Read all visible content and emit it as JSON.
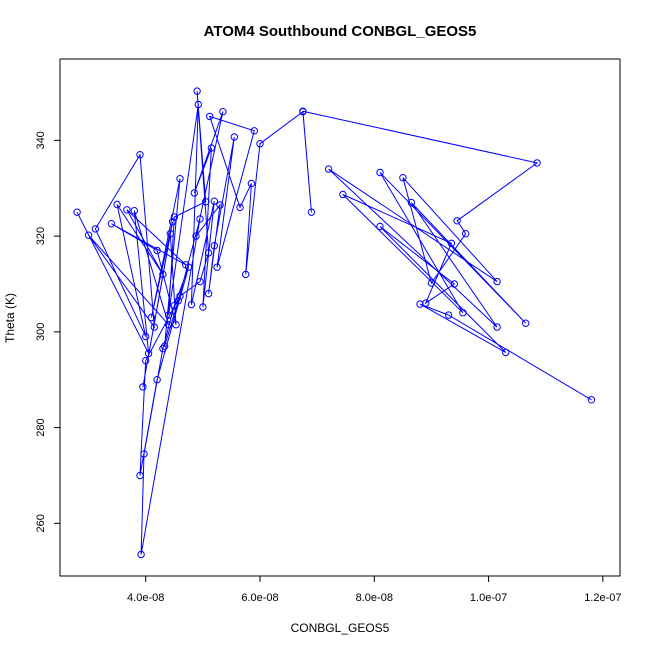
{
  "chart_data": {
    "type": "line",
    "title": "ATOM4 Southbound CONBGL_GEOS5",
    "xlabel": "CONBGL_GEOS5",
    "ylabel": "Theta (K)",
    "xlim": [
      2.5e-08,
      1.23e-07
    ],
    "ylim": [
      249.0,
      357.0
    ],
    "xticks": [
      {
        "value": 4e-08,
        "label": "4.0e-08"
      },
      {
        "value": 6e-08,
        "label": "6.0e-08"
      },
      {
        "value": 8e-08,
        "label": "8.0e-08"
      },
      {
        "value": 1e-07,
        "label": "1.0e-07"
      },
      {
        "value": 1.2e-07,
        "label": "1.2e-07"
      }
    ],
    "yticks": [
      {
        "value": 260,
        "label": "260"
      },
      {
        "value": 280,
        "label": "280"
      },
      {
        "value": 300,
        "label": "300"
      },
      {
        "value": 320,
        "label": "320"
      },
      {
        "value": 340,
        "label": "340"
      }
    ],
    "series_color": "#0000ff",
    "marker": "open-circle",
    "series": [
      {
        "x": [
          2.8e-08,
          4.05e-08,
          3.8e-08,
          4.4e-08,
          3e-08,
          4.15e-08,
          3.9e-08,
          3.12e-08,
          4e-08,
          3.5e-08,
          4.3e-08,
          3.67e-08,
          4.7e-08,
          3.4e-08,
          4.2e-08,
          4.53e-08,
          4.43e-08,
          3.95e-08,
          4.47e-08,
          4.1e-08,
          4.6e-08,
          4.33e-08,
          4.57e-08,
          4.95e-08,
          3.92e-08,
          3.97e-08,
          4.3e-08,
          4.5e-08,
          4.75e-08,
          4.2e-08,
          3.9e-08,
          4e-08,
          4.6e-08,
          4.95e-08,
          5.1e-08,
          4.9e-08,
          5.05e-08,
          4.5e-08,
          4.4e-08,
          4.92e-08,
          4.8e-08,
          5.2e-08,
          5e-08,
          5.15e-08,
          4.85e-08,
          5.35e-08,
          4.88e-08,
          5.3e-08,
          5.1e-08,
          5.2e-08,
          5.55e-08,
          5.25e-08,
          5.9e-08,
          5.12e-08,
          5.65e-08,
          5.85e-08,
          5.75e-08,
          6e-08,
          6.75e-08,
          6.9e-08,
          6.75e-08,
          1.085e-07,
          9.45e-08,
          9.6e-08,
          9e-08,
          8.5e-08,
          1.015e-07,
          7.2e-08,
          1.015e-07,
          8.65e-08,
          1.065e-07,
          8.1e-08,
          9.55e-08,
          7.45e-08,
          9.35e-08,
          8.9e-08,
          9.4e-08,
          8.1e-08,
          1.03e-07,
          8.8e-08,
          9.3e-08,
          1.18e-07
        ],
        "y": [
          325.0,
          295.5,
          325.3,
          301.5,
          320.2,
          301.0,
          337.0,
          321.5,
          299.0,
          326.6,
          312.0,
          325.5,
          314.0,
          322.6,
          317.0,
          301.5,
          320.5,
          288.5,
          323.0,
          303.0,
          332.0,
          297.0,
          306.5,
          323.6,
          253.5,
          274.5,
          296.5,
          305.5,
          313.5,
          290.0,
          270.0,
          294.0,
          307.5,
          310.5,
          316.5,
          350.3,
          327.2,
          324.0,
          303.5,
          347.5,
          305.7,
          327.3,
          305.2,
          338.4,
          329.0,
          346.0,
          320.0,
          326.5,
          308.0,
          318.0,
          340.7,
          313.5,
          342.0,
          345.0,
          326.0,
          331.0,
          312.0,
          339.3,
          346.0,
          325.0,
          346.1,
          335.3,
          323.2,
          320.5,
          310.2,
          332.2,
          310.5,
          334.0,
          301.0,
          327.0,
          301.8,
          333.3,
          304.0,
          328.7,
          318.5,
          306.0,
          310.0,
          322.0,
          295.7,
          305.8,
          303.5,
          285.8
        ]
      }
    ]
  }
}
